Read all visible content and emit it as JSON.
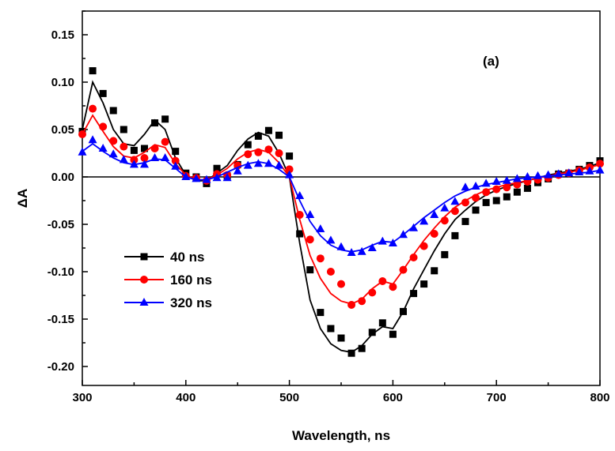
{
  "chart_data": {
    "type": "line",
    "title": "",
    "panel_label": "(a)",
    "xlabel": "Wavelength, ns",
    "ylabel": "ΔA",
    "xlim": [
      300,
      800
    ],
    "ylim": [
      -0.22,
      0.175
    ],
    "x_ticks": [
      300,
      400,
      500,
      600,
      700,
      800
    ],
    "x_tick_labels": [
      "300",
      "400",
      "500",
      "600",
      "700",
      "800"
    ],
    "y_ticks": [
      -0.2,
      -0.15,
      -0.1,
      -0.05,
      0.0,
      0.05,
      0.1,
      0.15
    ],
    "y_tick_labels": [
      "-0.20",
      "-0.15",
      "-0.10",
      "-0.05",
      "0.00",
      "0.05",
      "0.10",
      "0.15"
    ],
    "zero_line": true,
    "grid": false,
    "legend_position": "center-left",
    "series": [
      {
        "name": "40 ns",
        "color": "#000000",
        "marker": "square",
        "x": [
          300,
          310,
          320,
          330,
          340,
          350,
          360,
          370,
          380,
          390,
          400,
          410,
          420,
          430,
          440,
          450,
          460,
          470,
          480,
          490,
          500,
          510,
          520,
          530,
          540,
          550,
          560,
          570,
          580,
          590,
          600,
          610,
          620,
          630,
          640,
          650,
          660,
          670,
          680,
          690,
          700,
          710,
          720,
          730,
          740,
          750,
          760,
          770,
          780,
          790,
          800
        ],
        "y": [
          0.048,
          0.112,
          0.088,
          0.07,
          0.05,
          0.028,
          0.03,
          0.057,
          0.061,
          0.027,
          0.004,
          0.0,
          -0.007,
          0.009,
          0.001,
          0.013,
          0.034,
          0.043,
          0.049,
          0.044,
          0.022,
          -0.06,
          -0.098,
          -0.143,
          -0.16,
          -0.17,
          -0.186,
          -0.181,
          -0.164,
          -0.154,
          -0.166,
          -0.142,
          -0.123,
          -0.113,
          -0.099,
          -0.082,
          -0.062,
          -0.047,
          -0.035,
          -0.027,
          -0.025,
          -0.021,
          -0.016,
          -0.012,
          -0.006,
          -0.002,
          0.003,
          0.004,
          0.008,
          0.012,
          0.017
        ],
        "fit_y": [
          0.05,
          0.1,
          0.078,
          0.05,
          0.035,
          0.033,
          0.045,
          0.06,
          0.05,
          0.02,
          0.002,
          -0.004,
          -0.004,
          0.004,
          0.012,
          0.028,
          0.04,
          0.047,
          0.043,
          0.025,
          0.0,
          -0.07,
          -0.13,
          -0.16,
          -0.176,
          -0.183,
          -0.185,
          -0.178,
          -0.166,
          -0.158,
          -0.16,
          -0.142,
          -0.118,
          -0.098,
          -0.078,
          -0.06,
          -0.045,
          -0.035,
          -0.026,
          -0.019,
          -0.014,
          -0.01,
          -0.007,
          -0.004,
          -0.001,
          0.002,
          0.004,
          0.006,
          0.008,
          0.011,
          0.015
        ]
      },
      {
        "name": "160 ns",
        "color": "#ff0000",
        "marker": "circle",
        "x": [
          300,
          310,
          320,
          330,
          340,
          350,
          360,
          370,
          380,
          390,
          400,
          410,
          420,
          430,
          440,
          450,
          460,
          470,
          480,
          490,
          500,
          510,
          520,
          530,
          540,
          550,
          560,
          570,
          580,
          590,
          600,
          610,
          620,
          630,
          640,
          650,
          660,
          670,
          680,
          690,
          700,
          710,
          720,
          730,
          740,
          750,
          760,
          770,
          780,
          790,
          800
        ],
        "y": [
          0.045,
          0.072,
          0.053,
          0.038,
          0.032,
          0.018,
          0.02,
          0.03,
          0.037,
          0.017,
          0.001,
          -0.001,
          -0.004,
          0.003,
          0.002,
          0.012,
          0.024,
          0.026,
          0.029,
          0.025,
          0.008,
          -0.04,
          -0.066,
          -0.086,
          -0.1,
          -0.113,
          -0.135,
          -0.131,
          -0.122,
          -0.11,
          -0.116,
          -0.098,
          -0.085,
          -0.073,
          -0.06,
          -0.046,
          -0.036,
          -0.027,
          -0.022,
          -0.016,
          -0.013,
          -0.011,
          -0.008,
          -0.005,
          -0.003,
          -0.001,
          0.002,
          0.004,
          0.007,
          0.01,
          0.014
        ],
        "fit_y": [
          0.045,
          0.065,
          0.048,
          0.032,
          0.022,
          0.02,
          0.026,
          0.034,
          0.031,
          0.014,
          0.002,
          -0.003,
          -0.003,
          0.002,
          0.009,
          0.019,
          0.026,
          0.029,
          0.026,
          0.015,
          0.0,
          -0.045,
          -0.083,
          -0.107,
          -0.123,
          -0.131,
          -0.134,
          -0.129,
          -0.118,
          -0.11,
          -0.113,
          -0.098,
          -0.082,
          -0.067,
          -0.054,
          -0.042,
          -0.032,
          -0.025,
          -0.019,
          -0.014,
          -0.011,
          -0.008,
          -0.006,
          -0.004,
          -0.001,
          0.001,
          0.003,
          0.005,
          0.007,
          0.01,
          0.013
        ]
      },
      {
        "name": "320 ns",
        "color": "#0000ff",
        "marker": "triangle",
        "x": [
          300,
          310,
          320,
          330,
          340,
          350,
          360,
          370,
          380,
          390,
          400,
          410,
          420,
          430,
          440,
          450,
          460,
          470,
          480,
          490,
          500,
          510,
          520,
          530,
          540,
          550,
          560,
          570,
          580,
          590,
          600,
          610,
          620,
          630,
          640,
          650,
          660,
          670,
          680,
          690,
          700,
          710,
          720,
          730,
          740,
          750,
          760,
          770,
          780,
          790,
          800
        ],
        "y": [
          0.026,
          0.039,
          0.03,
          0.024,
          0.018,
          0.013,
          0.013,
          0.02,
          0.02,
          0.011,
          0.0,
          -0.002,
          -0.003,
          -0.001,
          -0.001,
          0.006,
          0.012,
          0.014,
          0.014,
          0.012,
          0.002,
          -0.02,
          -0.04,
          -0.055,
          -0.067,
          -0.074,
          -0.08,
          -0.079,
          -0.075,
          -0.068,
          -0.07,
          -0.061,
          -0.054,
          -0.047,
          -0.04,
          -0.033,
          -0.026,
          -0.011,
          -0.01,
          -0.007,
          -0.005,
          -0.004,
          -0.002,
          0.0,
          0.001,
          0.002,
          0.003,
          0.004,
          0.005,
          0.006,
          0.007
        ],
        "fit_y": [
          0.027,
          0.035,
          0.027,
          0.02,
          0.015,
          0.013,
          0.015,
          0.019,
          0.018,
          0.009,
          0.0,
          -0.003,
          -0.003,
          0.0,
          0.005,
          0.01,
          0.014,
          0.016,
          0.014,
          0.008,
          0.0,
          -0.025,
          -0.047,
          -0.062,
          -0.072,
          -0.077,
          -0.079,
          -0.077,
          -0.072,
          -0.068,
          -0.069,
          -0.061,
          -0.052,
          -0.043,
          -0.035,
          -0.027,
          -0.02,
          -0.015,
          -0.011,
          -0.008,
          -0.006,
          -0.004,
          -0.002,
          -0.001,
          0.0,
          0.001,
          0.002,
          0.003,
          0.004,
          0.005,
          0.007
        ]
      }
    ]
  }
}
